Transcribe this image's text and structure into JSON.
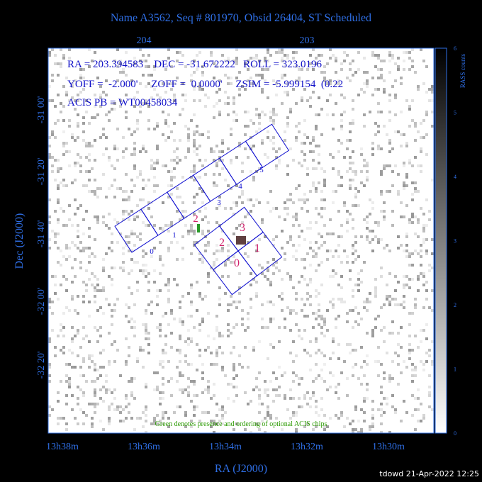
{
  "header": {
    "title": "Name A3562, Seq # 801970, Obsid 26404, ST Scheduled"
  },
  "axes": {
    "top_ticks": [
      "204",
      "203"
    ],
    "left_ticks": [
      "-31 00'",
      "-31 20'",
      "-31 40'",
      "-32 00'",
      "-32 20'"
    ],
    "bottom_ticks": [
      "13h38m",
      "13h36m",
      "13h34m",
      "13h32m",
      "13h30m"
    ],
    "x_title": "RA (J2000)",
    "y_title": "Dec (J2000)"
  },
  "info": [
    "RA = 203.394583    DEC = -31.672222   ROLL = 323.0196",
    "YOFF =  -2.000'     ZOFF =  0.0000'     ZSIM = -5.999154  (0.22",
    "ACIS PB = WT00458034"
  ],
  "acis_s": [
    "0",
    "1",
    "2",
    "3",
    "4",
    "5"
  ],
  "acis_i": [
    "0",
    "1",
    "2",
    "3"
  ],
  "note": "Green denotes presence and ordering of optional ACIS chips",
  "colorbar": {
    "title": "RASS counts",
    "ticks": [
      "0",
      "1",
      "2",
      "3",
      "4",
      "5",
      "6"
    ]
  },
  "footer": "tdowd 21-Apr-2022 12:25"
}
